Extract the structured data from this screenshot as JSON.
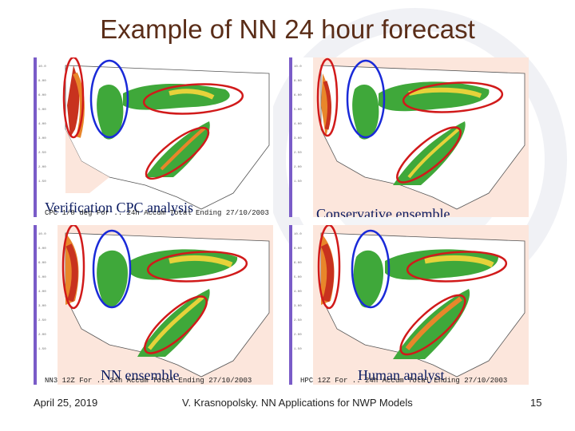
{
  "slide": {
    "title": "Example of NN 24 hour forecast"
  },
  "panels": [
    {
      "caption": "Verification CPC analysis",
      "footer": "CPC 1/8 deg  For ..  24h Accum  Total  Ending  27/10/2003",
      "name": "verification"
    },
    {
      "caption": "Conservative ensemble",
      "footer": "",
      "name": "conservative"
    },
    {
      "caption": "NN ensemble",
      "footer": "NN3 12Z  For ..  24h Accum  Total  Ending  27/10/2003",
      "name": "nn"
    },
    {
      "caption": "Human analyst",
      "footer": "HPC 12Z  For ..  24h Accum  Total  Ending  27/10/2003",
      "name": "human"
    }
  ],
  "footer": {
    "date": "April 25, 2019",
    "credit": "V. Krasnopolsky.  NN Applications for NWP Models",
    "page": "15"
  },
  "colors": {
    "title": "#5a2d18",
    "caption": "#0a1a60",
    "highlight_red": "#d11a1a",
    "highlight_blue": "#1a2ad8",
    "precip_green": "#3fa83a",
    "precip_yellow": "#e6d23a",
    "precip_orange": "#e8862a",
    "precip_red": "#c8321e",
    "background_land": "#ffffff",
    "background_ocean_tint": "#fbe3da"
  }
}
